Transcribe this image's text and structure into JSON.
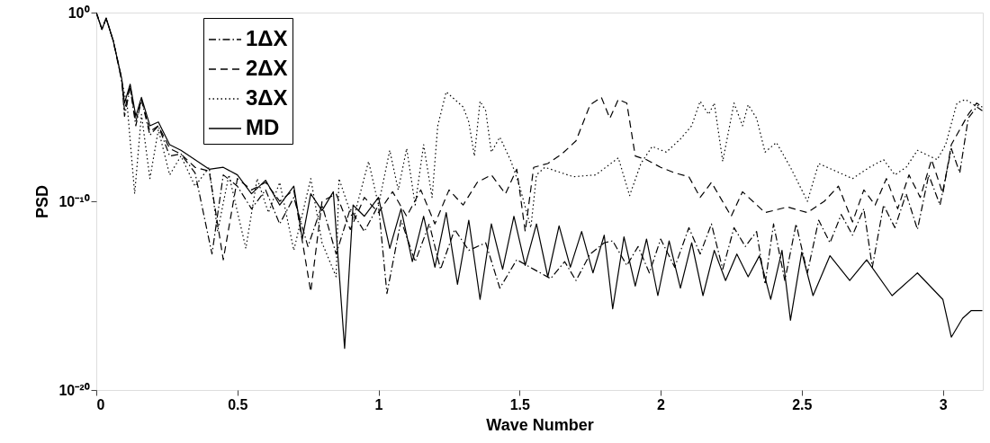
{
  "chart_data": {
    "type": "line",
    "xlabel": "Wave Number",
    "ylabel": "PSD",
    "log": "y",
    "xlim": [
      0,
      3.1416
    ],
    "xticks": [
      0,
      0.5,
      1,
      1.5,
      2,
      2.5,
      3
    ],
    "ylim": [
      1e-20,
      1
    ],
    "yticks": [
      {
        "value": 1e-20,
        "label": "10⁻²⁰"
      },
      {
        "value": 1e-10,
        "label": "10⁻¹⁰"
      },
      {
        "value": 1,
        "label": "10⁰"
      }
    ],
    "grid": false,
    "legend": "top left",
    "marker": "none",
    "series": [
      {
        "name": "1ΔX",
        "color": "#000000",
        "line_style": "dashdot",
        "x": [
          0,
          0.02,
          0.035,
          0.06,
          0.09,
          0.1,
          0.12,
          0.14,
          0.16,
          0.19,
          0.22,
          0.26,
          0.3,
          0.35,
          0.41,
          0.45,
          0.5,
          0.55,
          0.6,
          0.65,
          0.7,
          0.75,
          0.8,
          0.85,
          0.9,
          0.95,
          1.0,
          1.03,
          1.08,
          1.13,
          1.18,
          1.22,
          1.27,
          1.32,
          1.38,
          1.43,
          1.49,
          1.55,
          1.61,
          1.66,
          1.7,
          1.75,
          1.8,
          1.83,
          1.88,
          1.92,
          1.96,
          2.0,
          2.05,
          2.1,
          2.14,
          2.18,
          2.22,
          2.26,
          2.3,
          2.34,
          2.37,
          2.4,
          2.44,
          2.48,
          2.52,
          2.56,
          2.6,
          2.64,
          2.68,
          2.72,
          2.75,
          2.79,
          2.83,
          2.87,
          2.91,
          2.95,
          2.99,
          3.03,
          3.06,
          3.09,
          3.12,
          3.14
        ],
        "values": [
          1,
          0.13,
          0.5,
          0.032,
          0.00025,
          3.2e-06,
          0.0001,
          1e-06,
          2.5e-05,
          3.2e-07,
          1e-06,
          2.5e-08,
          3.2e-08,
          3.2e-09,
          1.6e-13,
          2.5e-09,
          6.3e-10,
          4e-11,
          4e-10,
          6.3e-12,
          1.6e-10,
          4e-13,
          6.3e-11,
          1.6e-13,
          4e-11,
          2.5e-12,
          6.3e-11,
          1.3e-15,
          1e-11,
          6.3e-14,
          6.3e-12,
          2.5e-14,
          3.2e-12,
          2.5e-13,
          6.3e-13,
          2.5e-15,
          8e-14,
          2.5e-14,
          8e-15,
          6.3e-14,
          6.3e-15,
          1.6e-13,
          6.3e-13,
          8e-13,
          4e-14,
          4e-13,
          1.6e-14,
          1e-12,
          3.2e-14,
          4e-12,
          1.6e-13,
          6.3e-12,
          2.5e-14,
          4e-12,
          4e-13,
          2.5e-12,
          4e-15,
          6.3e-12,
          6.3e-15,
          6.3e-12,
          1.6e-14,
          1e-11,
          6.3e-13,
          2e-11,
          1.6e-12,
          4e-11,
          3.2e-14,
          6.3e-11,
          4e-12,
          2.5e-10,
          3.2e-12,
          2.5e-09,
          6.3e-11,
          6.3e-08,
          3.2e-09,
          2.5e-06,
          1e-05,
          6.3e-06
        ]
      },
      {
        "name": "2ΔX",
        "color": "#000000",
        "line_style": "dashed",
        "x": [
          0,
          0.02,
          0.035,
          0.06,
          0.09,
          0.1,
          0.12,
          0.14,
          0.16,
          0.19,
          0.22,
          0.26,
          0.3,
          0.35,
          0.4,
          0.45,
          0.5,
          0.55,
          0.6,
          0.65,
          0.7,
          0.76,
          0.8,
          0.85,
          0.9,
          0.95,
          1.0,
          1.05,
          1.1,
          1.15,
          1.2,
          1.25,
          1.3,
          1.35,
          1.4,
          1.45,
          1.49,
          1.52,
          1.55,
          1.6,
          1.65,
          1.7,
          1.75,
          1.79,
          1.82,
          1.85,
          1.88,
          1.91,
          1.95,
          2.0,
          2.05,
          2.1,
          2.14,
          2.18,
          2.25,
          2.29,
          2.37,
          2.45,
          2.52,
          2.58,
          2.63,
          2.68,
          2.72,
          2.76,
          2.8,
          2.84,
          2.88,
          2.92,
          2.96,
          3.0,
          3.03,
          3.06,
          3.09,
          3.12,
          3.14
        ],
        "values": [
          1,
          0.13,
          0.5,
          0.032,
          0.00032,
          6.3e-06,
          0.00013,
          1.6e-06,
          2.5e-05,
          5e-07,
          1e-06,
          6.3e-08,
          3.2e-08,
          6.3e-09,
          4e-09,
          8e-14,
          1.6e-09,
          4e-10,
          1e-09,
          1e-10,
          4e-10,
          1.6e-15,
          1e-10,
          2.5e-10,
          3.2e-12,
          1.6e-10,
          2.5e-11,
          3.2e-10,
          1.6e-11,
          4e-10,
          6.3e-12,
          4e-10,
          6.3e-11,
          1e-09,
          2.5e-09,
          2.5e-10,
          5e-09,
          2.5e-12,
          6.3e-09,
          1e-08,
          3.2e-08,
          1.6e-07,
          1.3e-05,
          3.2e-05,
          2.5e-06,
          2.5e-05,
          1.6e-05,
          2.5e-08,
          1.6e-08,
          6.3e-09,
          3.2e-09,
          2e-09,
          1.6e-10,
          1e-09,
          1.6e-11,
          3.2e-10,
          2.5e-11,
          5e-11,
          2.5e-11,
          1e-10,
          6.3e-10,
          8e-12,
          4e-10,
          6.3e-11,
          1.6e-09,
          4e-11,
          2.5e-09,
          1.6e-10,
          1.6e-08,
          2.5e-10,
          1e-07,
          6.3e-07,
          4e-06,
          1.6e-05,
          1e-05
        ]
      },
      {
        "name": "3ΔX",
        "color": "#000000",
        "line_style": "dotted",
        "x": [
          0,
          0.02,
          0.035,
          0.06,
          0.09,
          0.11,
          0.136,
          0.16,
          0.19,
          0.22,
          0.26,
          0.3,
          0.35,
          0.4,
          0.43,
          0.47,
          0.53,
          0.57,
          0.61,
          0.65,
          0.7,
          0.76,
          0.8,
          0.85,
          0.86,
          0.91,
          0.965,
          1.0,
          1.04,
          1.07,
          1.1,
          1.13,
          1.16,
          1.19,
          1.21,
          1.24,
          1.27,
          1.3,
          1.32,
          1.34,
          1.36,
          1.38,
          1.4,
          1.43,
          1.47,
          1.5,
          1.54,
          1.56,
          1.59,
          1.69,
          1.77,
          1.85,
          1.89,
          1.93,
          1.97,
          2.02,
          2.07,
          2.11,
          2.14,
          2.17,
          2.19,
          2.22,
          2.26,
          2.29,
          2.31,
          2.34,
          2.37,
          2.41,
          2.46,
          2.52,
          2.56,
          2.62,
          2.68,
          2.74,
          2.79,
          2.83,
          2.87,
          2.91,
          2.98,
          3.01,
          3.05,
          3.08,
          3.11,
          3.14
        ],
        "values": [
          1,
          0.13,
          0.5,
          0.032,
          0.00025,
          1e-05,
          2.5e-10,
          4e-06,
          1.6e-09,
          6.3e-07,
          2.5e-09,
          2.5e-08,
          6.3e-10,
          6.3e-09,
          2.5e-12,
          2.5e-09,
          3.2e-13,
          1.6e-09,
          2.5e-11,
          1e-09,
          2.5e-13,
          1.6e-09,
          6.3e-13,
          1e-14,
          1.6e-09,
          1e-11,
          1.3e-08,
          6.3e-11,
          5e-08,
          4e-10,
          6.3e-08,
          6.3e-11,
          1e-07,
          1.6e-10,
          1e-06,
          6.3e-05,
          2.5e-05,
          1e-05,
          1.6e-06,
          2.5e-08,
          2e-05,
          6.3e-06,
          4e-08,
          2.5e-07,
          1.3e-08,
          6.3e-10,
          4e-12,
          2.5e-09,
          6.3e-09,
          2e-09,
          2.5e-09,
          2e-08,
          2e-10,
          1e-08,
          8e-08,
          4e-08,
          2e-07,
          1e-06,
          2e-05,
          4e-06,
          1.6e-05,
          1.3e-08,
          1.6e-05,
          1e-06,
          1.3e-05,
          2.5e-06,
          4e-08,
          1.3e-07,
          6.3e-09,
          1e-10,
          1e-08,
          4e-09,
          1.6e-09,
          6.3e-09,
          1.6e-08,
          2.5e-09,
          6.3e-09,
          5e-08,
          1.6e-08,
          1e-07,
          1.6e-05,
          2.5e-05,
          1.3e-05,
          1e-05
        ]
      },
      {
        "name": "MD",
        "color": "#000000",
        "line_style": "solid",
        "x": [
          0,
          0.02,
          0.035,
          0.06,
          0.09,
          0.1,
          0.12,
          0.14,
          0.16,
          0.19,
          0.22,
          0.26,
          0.3,
          0.35,
          0.4,
          0.45,
          0.5,
          0.55,
          0.6,
          0.65,
          0.7,
          0.73,
          0.76,
          0.8,
          0.84,
          0.88,
          0.91,
          0.95,
          1.0,
          1.04,
          1.08,
          1.12,
          1.16,
          1.2,
          1.24,
          1.28,
          1.32,
          1.36,
          1.4,
          1.44,
          1.48,
          1.52,
          1.56,
          1.6,
          1.64,
          1.68,
          1.72,
          1.76,
          1.8,
          1.83,
          1.87,
          1.91,
          1.95,
          1.99,
          2.03,
          2.07,
          2.11,
          2.15,
          2.19,
          2.23,
          2.27,
          2.31,
          2.35,
          2.39,
          2.43,
          2.46,
          2.5,
          2.54,
          2.6,
          2.67,
          2.73,
          2.82,
          2.91,
          3.0,
          3.03,
          3.07,
          3.1,
          3.14
        ],
        "values": [
          1,
          0.13,
          0.5,
          0.032,
          0.00032,
          1.6e-05,
          0.00016,
          3.2e-06,
          3.2e-05,
          1e-06,
          1.6e-06,
          1e-07,
          5e-08,
          1.6e-08,
          5e-09,
          6.3e-09,
          2.5e-09,
          2.5e-10,
          1.3e-09,
          6.3e-11,
          6.3e-10,
          1e-12,
          2.5e-10,
          3.2e-11,
          3.2e-10,
          1.6e-18,
          6.3e-11,
          1.6e-11,
          1.6e-10,
          3.2e-13,
          4e-11,
          6.3e-14,
          1.6e-11,
          3.2e-14,
          2.5e-11,
          4e-15,
          1e-11,
          6.3e-16,
          6.3e-12,
          2.5e-14,
          1.6e-11,
          4e-14,
          6.3e-12,
          1e-14,
          5e-12,
          3.2e-14,
          2.5e-12,
          1.6e-14,
          1.6e-12,
          2e-16,
          1.3e-12,
          3.2e-15,
          1e-12,
          1e-15,
          8e-13,
          2.5e-15,
          6.3e-13,
          1e-15,
          2.5e-13,
          6.3e-15,
          1.6e-13,
          1e-14,
          1.3e-13,
          6.3e-16,
          2.5e-13,
          5e-17,
          2e-13,
          1e-15,
          1.3e-13,
          6.3e-15,
          8e-14,
          1e-15,
          1.6e-14,
          6.3e-16,
          6.3e-18,
          6.3e-17,
          1.6e-16,
          1.6e-16
        ]
      }
    ]
  }
}
